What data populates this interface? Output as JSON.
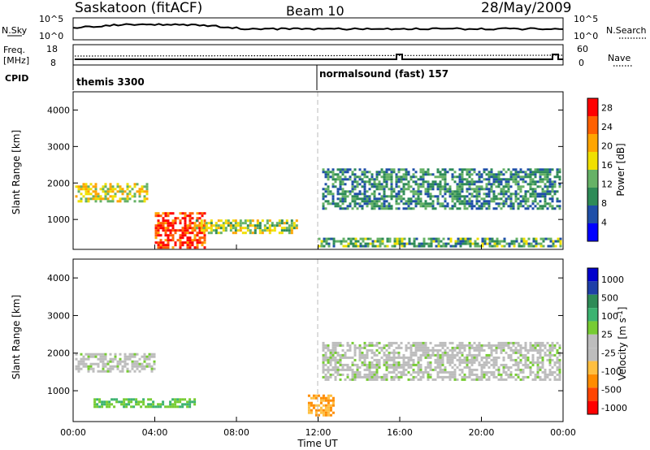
{
  "header": {
    "station": "Saskatoon (fitACF)",
    "beam": "Beam 10",
    "date": "28/May/2009"
  },
  "noise_panel": {
    "left_label": "N.Sky",
    "left_ticks": [
      "10^5",
      "10^0"
    ],
    "right_ticks": [
      "10^5",
      "10^0"
    ],
    "right_label": "N.Search",
    "right_style": "dotted"
  },
  "freq_panel": {
    "left_label_1": "Freq.",
    "left_label_2": "[MHz]",
    "left_ticks": [
      "18",
      "8"
    ],
    "right_ticks": [
      "60",
      "0"
    ],
    "right_label": "Nave",
    "right_style": "dotted"
  },
  "cpid": {
    "label": "CPID",
    "segments": [
      {
        "start_hour": 0,
        "name": "themis 3300"
      },
      {
        "start_hour": 12,
        "name": "normalsound (fast) 157"
      }
    ]
  },
  "colors": {
    "power_scale": [
      "#0000ff",
      "#1f4fa8",
      "#2e8b57",
      "#66b266",
      "#f0e000",
      "#ffa500",
      "#ff6000",
      "#ff0000"
    ],
    "velocity_scale": [
      "#ff0000",
      "#ff4500",
      "#ff8c00",
      "#ffbf40",
      "#bdbdbd",
      "#bdbdbd",
      "#77cc33",
      "#3cb371",
      "#2e8b57",
      "#1e3fa8",
      "#0000cd"
    ]
  },
  "chart_data": [
    {
      "type": "heatmap",
      "title": "",
      "xlabel": "Time UT",
      "ylabel": "Slant Range [km]",
      "x_ticks": [
        "00:00",
        "04:00",
        "08:00",
        "12:00",
        "16:00",
        "20:00",
        "00:00"
      ],
      "xlim": [
        0,
        24
      ],
      "ylim": [
        180,
        4500
      ],
      "y_ticks": [
        1000,
        2000,
        3000,
        4000
      ],
      "colorbar": {
        "label": "Power [dB]",
        "range": [
          0,
          30
        ],
        "ticks": [
          4,
          8,
          12,
          16,
          20,
          24,
          28
        ]
      },
      "regions": [
        {
          "start_hour": 0.1,
          "end_hour": 3.6,
          "range_start_km": 1500,
          "range_end_km": 2000,
          "level_db": 18
        },
        {
          "start_hour": 4.0,
          "end_hour": 6.5,
          "range_start_km": 250,
          "range_end_km": 1200,
          "level_db": 28
        },
        {
          "start_hour": 6.0,
          "end_hour": 11.0,
          "range_start_km": 600,
          "range_end_km": 1000,
          "level_db": 16
        },
        {
          "start_hour": 12.2,
          "end_hour": 23.9,
          "range_start_km": 1300,
          "range_end_km": 2400,
          "level_db": 10
        },
        {
          "start_hour": 12.0,
          "end_hour": 23.9,
          "range_start_km": 250,
          "range_end_km": 500,
          "level_db": 12
        }
      ]
    },
    {
      "type": "heatmap",
      "title": "",
      "xlabel": "Time UT",
      "ylabel": "Slant Range [km]",
      "x_ticks": [
        "00:00",
        "04:00",
        "08:00",
        "12:00",
        "16:00",
        "20:00",
        "00:00"
      ],
      "xlim": [
        0,
        24
      ],
      "ylim": [
        180,
        4500
      ],
      "y_ticks": [
        1000,
        2000,
        3000,
        4000
      ],
      "colorbar": {
        "label": "Velocity [m s^-1]",
        "range": [
          -1000,
          1000
        ],
        "ticks": [
          1000,
          500,
          100,
          25,
          -25,
          -100,
          -500,
          -1000
        ]
      },
      "regions": [
        {
          "start_hour": 0.1,
          "end_hour": 4.0,
          "range_start_km": 1500,
          "range_end_km": 2000,
          "velocity_ms": 0
        },
        {
          "start_hour": 1.0,
          "end_hour": 6.0,
          "range_start_km": 550,
          "range_end_km": 800,
          "velocity_ms": 80
        },
        {
          "start_hour": 11.5,
          "end_hour": 12.8,
          "range_start_km": 350,
          "range_end_km": 900,
          "velocity_ms": -300
        },
        {
          "start_hour": 12.2,
          "end_hour": 23.9,
          "range_start_km": 1300,
          "range_end_km": 2300,
          "velocity_ms": 0
        }
      ]
    }
  ]
}
